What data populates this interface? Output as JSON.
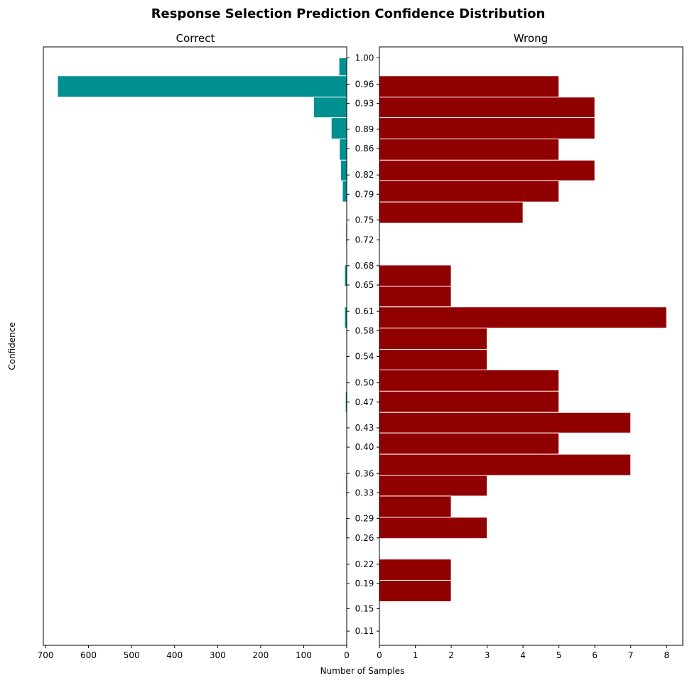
{
  "chart_data": {
    "type": "bar",
    "orientation": "horizontal",
    "title": "Response Selection Prediction Confidence Distribution",
    "xlabel": "Number of Samples",
    "ylabel": "Confidence",
    "ylim": [
      0.09,
      1.02
    ],
    "colors": {
      "correct": "#009090",
      "wrong": "#910000",
      "bar_edge": "#ffffff",
      "axis": "#000000"
    },
    "y_ticks": [
      {
        "value": 0.112,
        "label": "0.11"
      },
      {
        "value": 0.147,
        "label": "0.15"
      },
      {
        "value": 0.186,
        "label": "0.19"
      },
      {
        "value": 0.216,
        "label": "0.22"
      },
      {
        "value": 0.257,
        "label": "0.26"
      },
      {
        "value": 0.287,
        "label": "0.29"
      },
      {
        "value": 0.327,
        "label": "0.33"
      },
      {
        "value": 0.357,
        "label": "0.36"
      },
      {
        "value": 0.398,
        "label": "0.40"
      },
      {
        "value": 0.428,
        "label": "0.43"
      },
      {
        "value": 0.468,
        "label": "0.47"
      },
      {
        "value": 0.498,
        "label": "0.50"
      },
      {
        "value": 0.539,
        "label": "0.54"
      },
      {
        "value": 0.579,
        "label": "0.58"
      },
      {
        "value": 0.609,
        "label": "0.61"
      },
      {
        "value": 0.65,
        "label": "0.65"
      },
      {
        "value": 0.68,
        "label": "0.68"
      },
      {
        "value": 0.72,
        "label": "0.72"
      },
      {
        "value": 0.751,
        "label": "0.75"
      },
      {
        "value": 0.791,
        "label": "0.79"
      },
      {
        "value": 0.821,
        "label": "0.82"
      },
      {
        "value": 0.862,
        "label": "0.86"
      },
      {
        "value": 0.892,
        "label": "0.89"
      },
      {
        "value": 0.932,
        "label": "0.93"
      },
      {
        "value": 0.962,
        "label": "0.96"
      },
      {
        "value": 1.003,
        "label": "1.00"
      }
    ],
    "panels": [
      {
        "title": "Correct",
        "direction": "left",
        "xlim": [
          0,
          705
        ],
        "x_ticks": [
          {
            "value": 700,
            "label": "700"
          },
          {
            "value": 600,
            "label": "600"
          },
          {
            "value": 500,
            "label": "500"
          },
          {
            "value": 400,
            "label": "400"
          },
          {
            "value": 300,
            "label": "300"
          },
          {
            "value": 200,
            "label": "200"
          },
          {
            "value": 100,
            "label": "100"
          },
          {
            "value": 0,
            "label": "0"
          }
        ],
        "bins": [
          {
            "y0": 0.975,
            "y1": 1.003,
            "value": 18
          },
          {
            "y0": 0.942,
            "y1": 0.975,
            "value": 672
          },
          {
            "y0": 0.91,
            "y1": 0.942,
            "value": 77
          },
          {
            "y0": 0.877,
            "y1": 0.91,
            "value": 36
          },
          {
            "y0": 0.844,
            "y1": 0.877,
            "value": 17
          },
          {
            "y0": 0.812,
            "y1": 0.844,
            "value": 14
          },
          {
            "y0": 0.779,
            "y1": 0.812,
            "value": 10
          },
          {
            "y0": 0.714,
            "y1": 0.746,
            "value": 2
          },
          {
            "y0": 0.648,
            "y1": 0.681,
            "value": 5
          },
          {
            "y0": 0.583,
            "y1": 0.616,
            "value": 5
          },
          {
            "y0": 0.518,
            "y1": 0.55,
            "value": 1
          },
          {
            "y0": 0.452,
            "y1": 0.485,
            "value": 3
          },
          {
            "y0": 0.42,
            "y1": 0.452,
            "value": 1
          },
          {
            "y0": 0.322,
            "y1": 0.354,
            "value": 2
          },
          {
            "y0": 0.256,
            "y1": 0.289,
            "value": 2
          }
        ]
      },
      {
        "title": "Wrong",
        "direction": "right",
        "xlim": [
          0,
          8.45
        ],
        "x_ticks": [
          {
            "value": 0,
            "label": "0"
          },
          {
            "value": 1,
            "label": "1"
          },
          {
            "value": 2,
            "label": "2"
          },
          {
            "value": 3,
            "label": "3"
          },
          {
            "value": 4,
            "label": "4"
          },
          {
            "value": 5,
            "label": "5"
          },
          {
            "value": 6,
            "label": "6"
          },
          {
            "value": 7,
            "label": "7"
          },
          {
            "value": 8,
            "label": "8"
          }
        ],
        "bins": [
          {
            "y0": 0.942,
            "y1": 0.975,
            "value": 5
          },
          {
            "y0": 0.91,
            "y1": 0.942,
            "value": 6
          },
          {
            "y0": 0.877,
            "y1": 0.91,
            "value": 6
          },
          {
            "y0": 0.844,
            "y1": 0.877,
            "value": 5
          },
          {
            "y0": 0.812,
            "y1": 0.844,
            "value": 6
          },
          {
            "y0": 0.779,
            "y1": 0.812,
            "value": 5
          },
          {
            "y0": 0.746,
            "y1": 0.779,
            "value": 4
          },
          {
            "y0": 0.648,
            "y1": 0.681,
            "value": 2
          },
          {
            "y0": 0.616,
            "y1": 0.648,
            "value": 2
          },
          {
            "y0": 0.583,
            "y1": 0.616,
            "value": 8
          },
          {
            "y0": 0.55,
            "y1": 0.583,
            "value": 3
          },
          {
            "y0": 0.518,
            "y1": 0.55,
            "value": 3
          },
          {
            "y0": 0.485,
            "y1": 0.518,
            "value": 5
          },
          {
            "y0": 0.452,
            "y1": 0.485,
            "value": 5
          },
          {
            "y0": 0.42,
            "y1": 0.452,
            "value": 7
          },
          {
            "y0": 0.387,
            "y1": 0.42,
            "value": 5
          },
          {
            "y0": 0.354,
            "y1": 0.387,
            "value": 7
          },
          {
            "y0": 0.322,
            "y1": 0.354,
            "value": 3
          },
          {
            "y0": 0.289,
            "y1": 0.322,
            "value": 2
          },
          {
            "y0": 0.256,
            "y1": 0.289,
            "value": 3
          },
          {
            "y0": 0.191,
            "y1": 0.224,
            "value": 2
          },
          {
            "y0": 0.158,
            "y1": 0.191,
            "value": 2
          }
        ]
      }
    ]
  }
}
